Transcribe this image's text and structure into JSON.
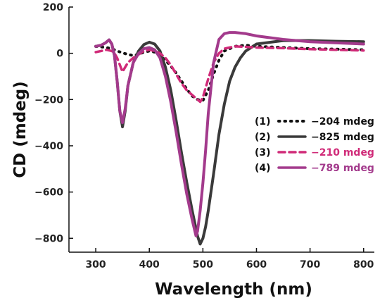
{
  "chart_data": {
    "type": "line",
    "title": "",
    "xlabel": "Wavelength (nm)",
    "ylabel": "CD (mdeg)",
    "xlim": [
      250,
      820
    ],
    "ylim": [
      -860,
      200
    ],
    "xticks": [
      300,
      400,
      500,
      600,
      700,
      800
    ],
    "yticks": [
      200,
      0,
      -200,
      -400,
      -600,
      -800
    ],
    "xtick_labels": [
      "300",
      "400",
      "500",
      "600",
      "700",
      "800"
    ],
    "ytick_labels": [
      "200",
      "0",
      "−200",
      "−400",
      "−600",
      "−800"
    ],
    "grid": false,
    "legend_position": "right",
    "series": [
      {
        "name": "(1)",
        "label": "−204 mdeg",
        "color": "#111111",
        "style": "dotted",
        "x": [
          300,
          310,
          320,
          330,
          340,
          350,
          360,
          370,
          380,
          390,
          400,
          410,
          420,
          430,
          440,
          450,
          460,
          470,
          480,
          490,
          500,
          510,
          520,
          530,
          540,
          560,
          580,
          600,
          650,
          700,
          750,
          800
        ],
        "y": [
          30,
          28,
          25,
          20,
          10,
          2,
          -5,
          -10,
          -5,
          5,
          10,
          5,
          -10,
          -30,
          -55,
          -85,
          -120,
          -155,
          -185,
          -200,
          -204,
          -160,
          -90,
          -30,
          10,
          30,
          35,
          30,
          25,
          20,
          18,
          15
        ]
      },
      {
        "name": "(2)",
        "label": "−825 mdeg",
        "color": "#3a3a3a",
        "style": "solid",
        "x": [
          300,
          310,
          318,
          325,
          330,
          335,
          340,
          345,
          350,
          355,
          360,
          370,
          380,
          390,
          400,
          410,
          420,
          430,
          440,
          450,
          460,
          470,
          480,
          490,
          495,
          500,
          505,
          510,
          520,
          530,
          540,
          550,
          560,
          570,
          580,
          600,
          650,
          700,
          750,
          800
        ],
        "y": [
          30,
          35,
          45,
          58,
          40,
          -10,
          -120,
          -250,
          -318,
          -250,
          -140,
          -40,
          10,
          38,
          48,
          40,
          10,
          -60,
          -160,
          -290,
          -430,
          -560,
          -680,
          -790,
          -825,
          -800,
          -750,
          -680,
          -520,
          -350,
          -220,
          -120,
          -60,
          -20,
          10,
          40,
          55,
          55,
          52,
          50
        ]
      },
      {
        "name": "(3)",
        "label": "−210 mdeg",
        "color": "#d02a78",
        "style": "dashed",
        "x": [
          300,
          310,
          320,
          330,
          335,
          340,
          345,
          350,
          355,
          360,
          370,
          380,
          390,
          400,
          410,
          420,
          430,
          440,
          450,
          460,
          470,
          480,
          490,
          495,
          500,
          510,
          520,
          530,
          540,
          560,
          580,
          600,
          650,
          700,
          750,
          800
        ],
        "y": [
          5,
          10,
          15,
          10,
          0,
          -20,
          -50,
          -80,
          -60,
          -40,
          -20,
          -5,
          10,
          15,
          10,
          0,
          -20,
          -50,
          -90,
          -130,
          -160,
          -180,
          -200,
          -210,
          -190,
          -110,
          -40,
          0,
          20,
          30,
          28,
          25,
          22,
          18,
          15,
          12
        ]
      },
      {
        "name": "(4)",
        "label": "−789 mdeg",
        "color": "#a33a8c",
        "style": "solid",
        "x": [
          300,
          310,
          318,
          325,
          330,
          335,
          340,
          345,
          350,
          355,
          360,
          370,
          380,
          390,
          400,
          410,
          420,
          430,
          440,
          450,
          460,
          470,
          480,
          487,
          490,
          495,
          500,
          505,
          510,
          520,
          530,
          540,
          550,
          560,
          580,
          600,
          650,
          700,
          750,
          800
        ],
        "y": [
          30,
          35,
          45,
          58,
          40,
          -10,
          -120,
          -250,
          -300,
          -240,
          -140,
          -40,
          0,
          20,
          25,
          15,
          -20,
          -100,
          -210,
          -340,
          -480,
          -610,
          -720,
          -789,
          -770,
          -680,
          -560,
          -420,
          -260,
          -40,
          60,
          85,
          90,
          90,
          85,
          75,
          60,
          50,
          45,
          40
        ]
      }
    ]
  }
}
